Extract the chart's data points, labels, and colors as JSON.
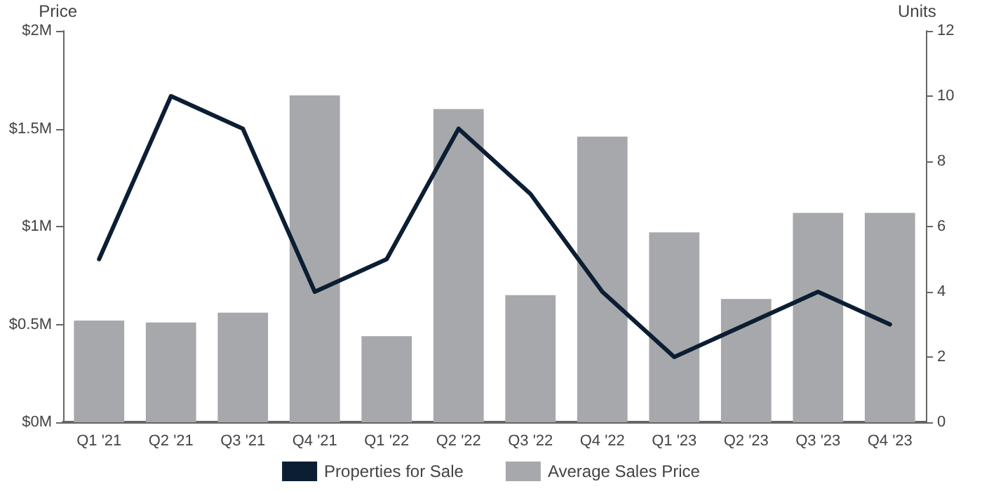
{
  "chart_data": {
    "type": "bar",
    "ylabel": "Price",
    "y2label": "Units",
    "categories": [
      "Q1 '21",
      "Q2 '21",
      "Q3 '21",
      "Q4 '21",
      "Q1 '22",
      "Q2 '22",
      "Q3 '22",
      "Q4 '22",
      "Q1 '23",
      "Q2 '23",
      "Q3 '23",
      "Q4 '23"
    ],
    "series": [
      {
        "name": "Properties for Sale",
        "type": "line",
        "axis": "y2",
        "color": "#0b1e33",
        "marker": "none",
        "line_style": "solid",
        "values": [
          5,
          10,
          9,
          4,
          5,
          9,
          7,
          4,
          2,
          3,
          4,
          3
        ]
      },
      {
        "name": "Average Sales Price",
        "color": "#a7a8ab",
        "values": [
          0.52,
          0.51,
          0.56,
          1.67,
          0.44,
          1.6,
          0.65,
          1.46,
          0.97,
          0.63,
          1.07,
          1.07
        ]
      }
    ],
    "ylim": [
      0,
      2
    ],
    "yticks": [
      {
        "value": 0,
        "label": "$0M"
      },
      {
        "value": 0.5,
        "label": "$0.5M"
      },
      {
        "value": 1,
        "label": "$1M"
      },
      {
        "value": 1.5,
        "label": "$1.5M"
      },
      {
        "value": 2,
        "label": "$2M"
      }
    ],
    "y2lim": [
      0,
      12
    ],
    "y2ticks": [
      0,
      2,
      4,
      6,
      8,
      10,
      12
    ],
    "grid": false,
    "legend": "bottom"
  }
}
